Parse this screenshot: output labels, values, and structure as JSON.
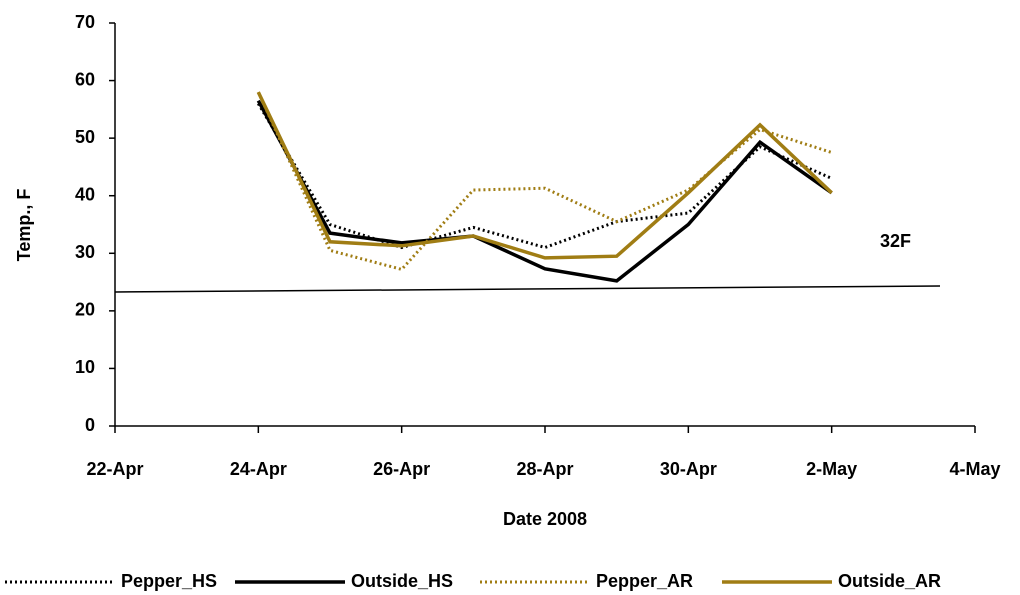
{
  "chart_data": {
    "type": "line",
    "x_label": "Date 2008",
    "y_label": "Temp., F",
    "annotation": "32F",
    "x": [
      "24-Apr",
      "25-Apr",
      "26-Apr",
      "27-Apr",
      "28-Apr",
      "29-Apr",
      "30-Apr",
      "1-May",
      "2-May"
    ],
    "xlim": [
      "22-Apr",
      "4-May"
    ],
    "xticks": [
      "22-Apr",
      "24-Apr",
      "26-Apr",
      "28-Apr",
      "30-Apr",
      "2-May",
      "4-May"
    ],
    "ylim": [
      0,
      70
    ],
    "yticks": [
      0,
      10,
      20,
      30,
      40,
      50,
      60,
      70
    ],
    "series": [
      {
        "name": "Pepper_HS",
        "color": "#000000",
        "dash": true,
        "values": [
          56,
          35,
          31,
          34.5,
          31,
          35.5,
          37,
          48.5,
          43
        ]
      },
      {
        "name": "Outside_HS",
        "color": "#000000",
        "dash": false,
        "values": [
          56.5,
          33.5,
          31.8,
          33,
          27.3,
          25.2,
          35,
          49.3,
          40.5
        ]
      },
      {
        "name": "Pepper_AR",
        "color": "#a07d14",
        "dash": true,
        "values": [
          58,
          30.5,
          27.2,
          41,
          41.3,
          35.5,
          41,
          51.5,
          47.5
        ]
      },
      {
        "name": "Outside_AR",
        "color": "#a07d14",
        "dash": false,
        "values": [
          58,
          32,
          31.3,
          33,
          29.2,
          29.5,
          40.5,
          52.3,
          40.5
        ]
      }
    ]
  }
}
